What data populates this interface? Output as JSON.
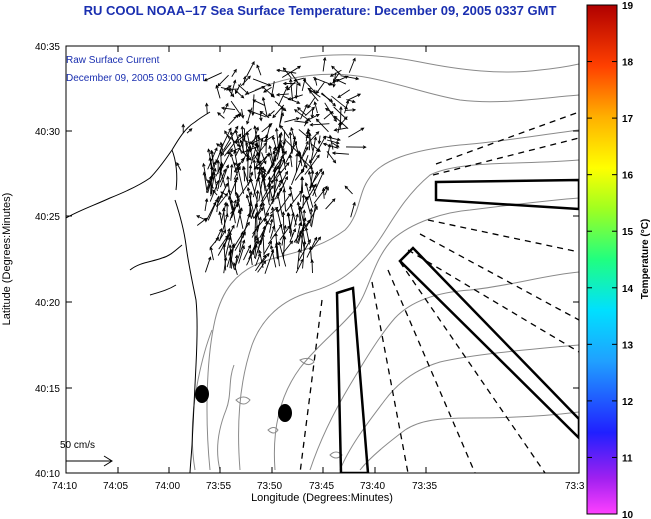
{
  "header": {
    "title": "RU COOL   NOAA–17  Sea Surface Temperature:  December 09, 2005 0337 GMT"
  },
  "annotation": {
    "line1": "Raw Surface Current",
    "line2": "December 09, 2005 03:00 GMT"
  },
  "axes": {
    "ylabel": "Latitude (Degrees:Minutes)",
    "xlabel": "Longitude (Degrees:Minutes)",
    "xticks": [
      "74:10",
      "74:05",
      "74:00",
      "73:55",
      "73:50",
      "73:45",
      "73:40",
      "73:35",
      "73:3"
    ],
    "yticks": [
      "40:35",
      "40:30",
      "40:25",
      "40:20",
      "40:15",
      "40:10"
    ]
  },
  "scale_arrow": {
    "label": "50 cm/s"
  },
  "colorbar": {
    "label": "Temperature (°C)",
    "ticks": [
      "19",
      "18",
      "17",
      "16",
      "15",
      "14",
      "13",
      "12",
      "11",
      "10"
    ],
    "min": 10,
    "max": 19
  }
}
